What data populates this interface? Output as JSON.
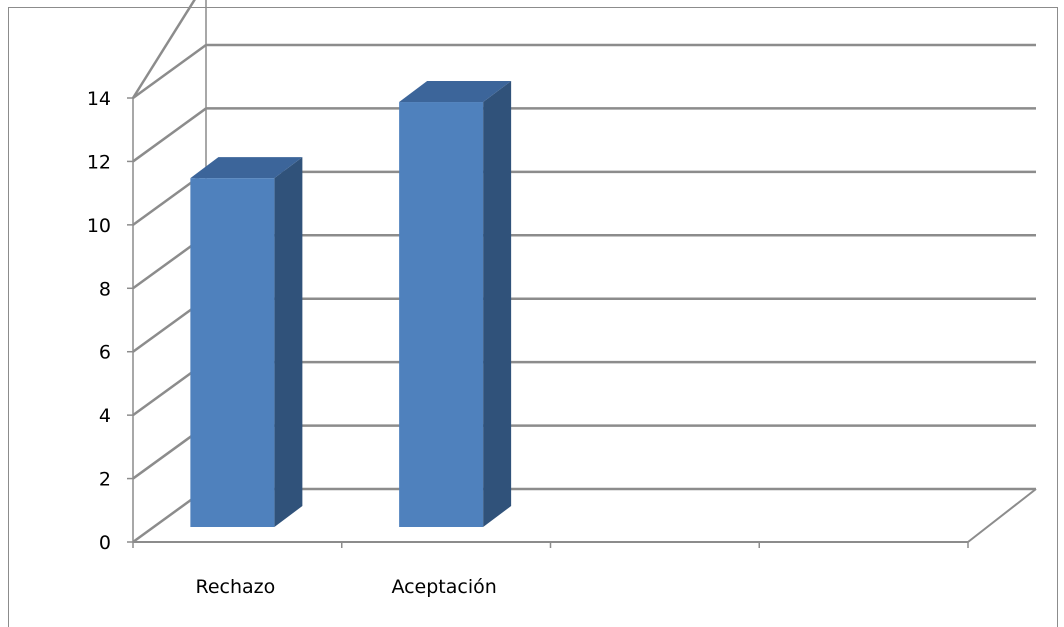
{
  "chart_data": {
    "type": "bar",
    "title": "",
    "xlabel": "",
    "ylabel": "",
    "categories": [
      "Rechazo",
      "Aceptación",
      "",
      ""
    ],
    "values": [
      11,
      13.4,
      null,
      null
    ],
    "ylim": [
      0,
      14
    ],
    "yticks": [
      "0",
      "2",
      "4",
      "6",
      "8",
      "10",
      "12",
      "14"
    ],
    "grid": true,
    "legend": "none",
    "three_d": true
  },
  "colors": {
    "bar_front": "#4f81bd",
    "bar_side": "#30527a",
    "bar_top": "#3c659a",
    "gridline": "#8c8c8c",
    "axis": "#8c8c8c",
    "frame": "#8c8c8c"
  }
}
